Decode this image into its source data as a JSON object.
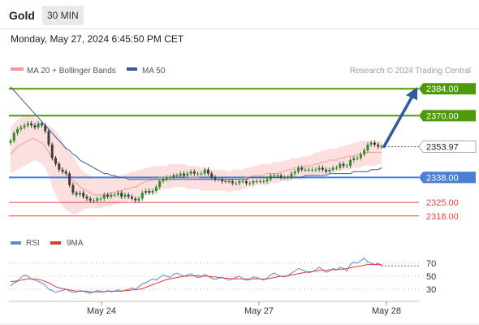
{
  "header": {
    "title": "Gold",
    "timeframe": "30 MIN",
    "datetime": "Monday, May 27, 2024 6:45:50 PM CET"
  },
  "legend": {
    "bollinger": "MA 20 + Bollinger Bands",
    "ma50": "MA 50",
    "credit": "Research © 2024 Trading Central",
    "rsi": "RSI",
    "rsi_ma": "9MA"
  },
  "colors": {
    "green": "#4f9a0b",
    "blue": "#4a7fd4",
    "red": "#e8463c",
    "dark": "#333333",
    "ma20": "#f59a9a",
    "band": "#fbd8d8",
    "ma50": "#3a5a92",
    "arrow": "#2f5b9a",
    "candle_up": "#2f8a2f",
    "candle_down": "#3d3d3d",
    "rsi": "#5b8bd6",
    "rsi_ma": "#e23a34"
  },
  "chart_data": [
    {
      "type": "candlestick",
      "title": "Gold 30 MIN",
      "x_ticks": [
        "May 24",
        "May 27",
        "May 28"
      ],
      "ylim": [
        2312,
        2390
      ],
      "levels": [
        {
          "label": "2384.00",
          "value": 2384.0,
          "kind": "resistance"
        },
        {
          "label": "2370.00",
          "value": 2370.0,
          "kind": "resistance"
        },
        {
          "label": "2353.97",
          "value": 2353.97,
          "kind": "last"
        },
        {
          "label": "2338.00",
          "value": 2338.0,
          "kind": "pivot"
        },
        {
          "label": "2325.00",
          "value": 2325.0,
          "kind": "support"
        },
        {
          "label": "2318.00",
          "value": 2318.0,
          "kind": "support"
        }
      ],
      "forecast": {
        "from": 2354,
        "to": 2384
      },
      "closes": [
        2357,
        2361,
        2363,
        2364,
        2365,
        2366,
        2365,
        2364,
        2366,
        2365,
        2362,
        2355,
        2348,
        2345,
        2342,
        2341,
        2340,
        2334,
        2330,
        2329,
        2330,
        2328,
        2327,
        2326,
        2326,
        2327,
        2327,
        2329,
        2328,
        2329,
        2329,
        2330,
        2328,
        2329,
        2328,
        2327,
        2326,
        2327,
        2330,
        2331,
        2330,
        2331,
        2333,
        2336,
        2337,
        2338,
        2338,
        2339,
        2339,
        2340,
        2339,
        2340,
        2341,
        2340,
        2340,
        2340,
        2342,
        2340,
        2338,
        2337,
        2337,
        2336,
        2336,
        2336,
        2335,
        2335,
        2336,
        2336,
        2335,
        2335,
        2336,
        2336,
        2336,
        2336,
        2337,
        2339,
        2339,
        2339,
        2338,
        2338,
        2338,
        2340,
        2341,
        2343,
        2342,
        2342,
        2342,
        2342,
        2342,
        2343,
        2342,
        2341,
        2342,
        2343,
        2343,
        2345,
        2344,
        2344,
        2347,
        2348,
        2348,
        2350,
        2352,
        2355,
        2356,
        2355,
        2354,
        2354
      ],
      "series": [
        {
          "name": "MA 20",
          "values": [
            2350,
            2352,
            2354,
            2355,
            2356,
            2357,
            2358,
            2358,
            2357,
            2356,
            2354,
            2351,
            2348,
            2346,
            2344,
            2342,
            2340,
            2338,
            2336,
            2335,
            2333,
            2332,
            2331,
            2330,
            2329,
            2329,
            2329,
            2329,
            2329,
            2330,
            2330,
            2331,
            2331,
            2332,
            2332,
            2333,
            2333,
            2334,
            2335,
            2336,
            2336,
            2337,
            2337,
            2338,
            2338,
            2338,
            2338,
            2339,
            2339,
            2339,
            2339,
            2338,
            2338,
            2338,
            2338,
            2337,
            2337,
            2337,
            2337,
            2337,
            2337,
            2337,
            2336,
            2336,
            2337,
            2337,
            2337,
            2337,
            2338,
            2338,
            2339,
            2339,
            2339,
            2339,
            2340,
            2340,
            2340,
            2340,
            2341,
            2341,
            2342,
            2342,
            2343,
            2343,
            2343,
            2344,
            2344,
            2344,
            2345,
            2345,
            2346,
            2346,
            2347,
            2347,
            2347,
            2348,
            2348,
            2349,
            2349,
            2349,
            2350,
            2350,
            2350,
            2351,
            2351,
            2351,
            2351,
            2351
          ]
        },
        {
          "name": "Bollinger upper",
          "values": [
            2364,
            2366,
            2368,
            2369,
            2370,
            2371,
            2370,
            2369,
            2368,
            2366,
            2365,
            2365,
            2364,
            2362,
            2360,
            2357,
            2354,
            2351,
            2349,
            2346,
            2343,
            2341,
            2340,
            2339,
            2338,
            2338,
            2338,
            2338,
            2338,
            2338,
            2339,
            2339,
            2339,
            2340,
            2340,
            2341,
            2341,
            2342,
            2342,
            2343,
            2343,
            2344,
            2344,
            2344,
            2344,
            2344,
            2345,
            2345,
            2345,
            2345,
            2345,
            2344,
            2344,
            2344,
            2344,
            2343,
            2343,
            2343,
            2342,
            2342,
            2342,
            2342,
            2342,
            2341,
            2342,
            2342,
            2342,
            2342,
            2343,
            2343,
            2344,
            2344,
            2345,
            2345,
            2345,
            2345,
            2346,
            2346,
            2346,
            2347,
            2347,
            2348,
            2348,
            2348,
            2349,
            2349,
            2349,
            2350,
            2351,
            2351,
            2352,
            2352,
            2353,
            2353,
            2353,
            2354,
            2354,
            2355,
            2355,
            2356,
            2356,
            2357,
            2357,
            2357,
            2357,
            2357,
            2357,
            2357
          ]
        },
        {
          "name": "Bollinger lower",
          "values": [
            2340,
            2341,
            2342,
            2343,
            2344,
            2345,
            2346,
            2347,
            2346,
            2345,
            2343,
            2339,
            2333,
            2329,
            2326,
            2323,
            2321,
            2320,
            2319,
            2319,
            2320,
            2321,
            2322,
            2322,
            2322,
            2322,
            2322,
            2323,
            2323,
            2323,
            2324,
            2324,
            2325,
            2325,
            2326,
            2326,
            2327,
            2327,
            2328,
            2329,
            2330,
            2330,
            2331,
            2331,
            2332,
            2332,
            2332,
            2333,
            2333,
            2333,
            2333,
            2332,
            2332,
            2332,
            2332,
            2331,
            2331,
            2331,
            2331,
            2331,
            2331,
            2331,
            2331,
            2330,
            2331,
            2331,
            2331,
            2332,
            2332,
            2333,
            2333,
            2334,
            2334,
            2334,
            2334,
            2335,
            2335,
            2335,
            2336,
            2336,
            2336,
            2337,
            2337,
            2337,
            2337,
            2338,
            2338,
            2338,
            2338,
            2339,
            2339,
            2340,
            2340,
            2341,
            2341,
            2341,
            2342,
            2342,
            2342,
            2343,
            2343,
            2343,
            2344,
            2344,
            2344,
            2344,
            2345,
            2345
          ]
        },
        {
          "name": "MA 50",
          "values": [
            2385,
            2383,
            2381,
            2379,
            2377,
            2375,
            2373,
            2371,
            2369,
            2367,
            2365,
            2363,
            2361,
            2359,
            2357,
            2355,
            2353,
            2352,
            2350,
            2349,
            2347,
            2346,
            2345,
            2344,
            2343,
            2342,
            2341,
            2340,
            2340,
            2339,
            2339,
            2338,
            2338,
            2338,
            2337,
            2337,
            2337,
            2337,
            2337,
            2337,
            2337,
            2337,
            2337,
            2337,
            2337,
            2337,
            2337,
            2337,
            2337,
            2337,
            2337,
            2337,
            2337,
            2337,
            2337,
            2337,
            2337,
            2337,
            2337,
            2337,
            2337,
            2337,
            2337,
            2337,
            2337,
            2337,
            2337,
            2337,
            2337,
            2338,
            2338,
            2338,
            2338,
            2338,
            2338,
            2338,
            2338,
            2338,
            2338,
            2338,
            2338,
            2338,
            2338,
            2338,
            2338,
            2339,
            2339,
            2339,
            2339,
            2339,
            2339,
            2339,
            2340,
            2340,
            2340,
            2340,
            2340,
            2340,
            2340,
            2341,
            2341,
            2341,
            2341,
            2341,
            2342,
            2342,
            2342,
            2343
          ]
        }
      ]
    },
    {
      "type": "line",
      "title": "RSI",
      "y_ticks": [
        70,
        50,
        30
      ],
      "ylim": [
        15,
        85
      ],
      "series": [
        {
          "name": "RSI",
          "values": [
            35,
            40,
            42,
            48,
            52,
            50,
            46,
            44,
            42,
            40,
            36,
            30,
            28,
            25,
            27,
            28,
            30,
            27,
            25,
            26,
            28,
            27,
            25,
            24,
            26,
            28,
            27,
            26,
            28,
            26,
            27,
            29,
            27,
            28,
            30,
            32,
            30,
            34,
            38,
            40,
            43,
            46,
            44,
            48,
            52,
            50,
            48,
            53,
            55,
            52,
            50,
            52,
            54,
            50,
            48,
            49,
            53,
            50,
            47,
            45,
            47,
            48,
            46,
            44,
            46,
            48,
            50,
            46,
            44,
            45,
            49,
            48,
            46,
            44,
            47,
            52,
            55,
            52,
            50,
            49,
            51,
            55,
            58,
            62,
            60,
            58,
            55,
            57,
            60,
            64,
            60,
            56,
            58,
            62,
            60,
            64,
            62,
            58,
            68,
            72,
            70,
            74,
            78,
            72,
            70,
            68,
            70,
            66
          ]
        },
        {
          "name": "9MA",
          "values": [
            42,
            42,
            43,
            44,
            45,
            46,
            46,
            46,
            45,
            44,
            42,
            40,
            37,
            34,
            32,
            31,
            30,
            29,
            28,
            27,
            27,
            27,
            27,
            26,
            26,
            26,
            26,
            26,
            27,
            27,
            27,
            27,
            27,
            28,
            28,
            29,
            29,
            30,
            31,
            33,
            35,
            37,
            39,
            41,
            43,
            45,
            46,
            47,
            48,
            49,
            50,
            50,
            51,
            51,
            51,
            50,
            50,
            50,
            49,
            49,
            48,
            48,
            47,
            47,
            46,
            46,
            46,
            46,
            46,
            46,
            46,
            46,
            46,
            46,
            46,
            47,
            48,
            49,
            50,
            50,
            51,
            52,
            53,
            54,
            55,
            56,
            57,
            57,
            58,
            59,
            59,
            59,
            60,
            60,
            60,
            61,
            61,
            62,
            63,
            64,
            65,
            66,
            67,
            68,
            68,
            68,
            68,
            68
          ]
        }
      ]
    }
  ]
}
